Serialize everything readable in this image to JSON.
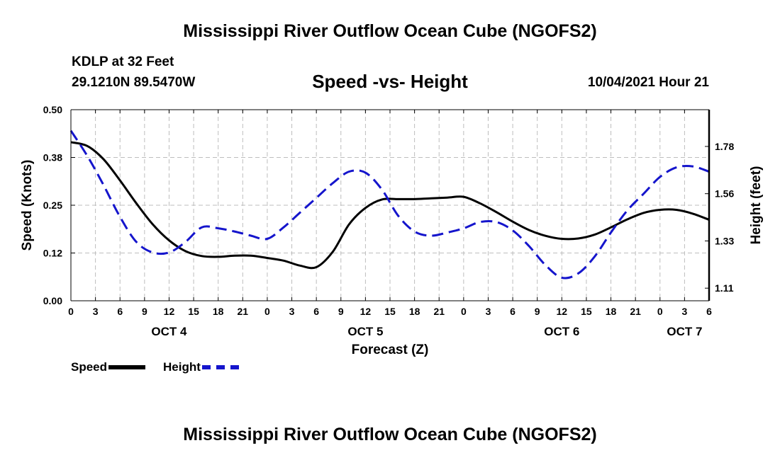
{
  "header": {
    "title": "Mississippi River Outflow Ocean Cube (NGOFS2)",
    "station": "KDLP at 32 Feet",
    "coords": "29.1210N  89.5470W",
    "subtitle": "Speed -vs- Height",
    "datetime": "10/04/2021 Hour 21"
  },
  "footer": {
    "title": "Mississippi River Outflow Ocean Cube (NGOFS2)"
  },
  "legend": {
    "speed_label": "Speed",
    "height_label": "Height"
  },
  "colors": {
    "speed": "#000000",
    "height": "#1515cc",
    "grid": "#bdbdbd"
  },
  "chart_data": {
    "type": "line",
    "xlabel": "Forecast (Z)",
    "ylabel_left": "Speed (Knots)",
    "ylabel_right": "Height (feet)",
    "xlim": [
      0,
      78
    ],
    "ylim_left": [
      0,
      0.5
    ],
    "ylim_right": [
      1.05,
      1.96
    ],
    "grid": true,
    "x_ticks": [
      0,
      3,
      6,
      9,
      12,
      15,
      18,
      21,
      24,
      27,
      30,
      33,
      36,
      39,
      42,
      45,
      48,
      51,
      54,
      57,
      60,
      63,
      66,
      69,
      72,
      75,
      78
    ],
    "x_tick_labels": [
      "0",
      "3",
      "6",
      "9",
      "12",
      "15",
      "18",
      "21",
      "0",
      "3",
      "6",
      "9",
      "12",
      "15",
      "18",
      "21",
      "0",
      "3",
      "6",
      "9",
      "12",
      "15",
      "18",
      "21",
      "0",
      "3",
      "6"
    ],
    "day_labels": [
      {
        "label": "OCT 4",
        "x": 12
      },
      {
        "label": "OCT 5",
        "x": 36
      },
      {
        "label": "OCT 6",
        "x": 60
      },
      {
        "label": "OCT 7",
        "x": 75
      }
    ],
    "y_left_ticks": [
      0,
      0.125,
      0.25,
      0.375,
      0.5
    ],
    "y_left_tick_labels": [
      "0.00",
      "0.12",
      "0.25",
      "0.38",
      "0.50"
    ],
    "y_right_ticks": [
      1.11,
      1.335,
      1.56,
      1.785
    ],
    "y_right_tick_labels": [
      "1.11",
      "1.33",
      "1.56",
      "1.78"
    ],
    "series": [
      {
        "name": "Speed",
        "axis": "left",
        "style": "solid",
        "x": [
          0,
          2,
          4,
          6,
          8,
          10,
          12,
          14,
          16,
          18,
          20,
          22,
          24,
          26,
          28,
          30,
          32,
          34,
          36,
          38,
          40,
          42,
          44,
          46,
          48,
          50,
          52,
          54,
          56,
          58,
          60,
          62,
          64,
          66,
          68,
          70,
          72,
          74,
          76,
          78
        ],
        "values": [
          0.415,
          0.405,
          0.37,
          0.315,
          0.255,
          0.2,
          0.158,
          0.13,
          0.117,
          0.115,
          0.118,
          0.118,
          0.112,
          0.105,
          0.092,
          0.088,
          0.128,
          0.2,
          0.243,
          0.265,
          0.266,
          0.266,
          0.268,
          0.27,
          0.272,
          0.255,
          0.232,
          0.207,
          0.185,
          0.17,
          0.162,
          0.163,
          0.173,
          0.192,
          0.213,
          0.23,
          0.238,
          0.238,
          0.228,
          0.212
        ]
      },
      {
        "name": "Height",
        "axis": "right",
        "style": "dashed",
        "x": [
          0,
          2,
          4,
          6,
          8,
          10,
          12,
          14,
          16,
          18,
          20,
          22,
          24,
          26,
          28,
          30,
          32,
          34,
          36,
          38,
          40,
          42,
          44,
          46,
          48,
          50,
          52,
          54,
          56,
          58,
          60,
          62,
          64,
          66,
          68,
          70,
          72,
          74,
          76,
          78
        ],
        "values": [
          1.86,
          1.74,
          1.6,
          1.45,
          1.33,
          1.28,
          1.28,
          1.33,
          1.4,
          1.395,
          1.38,
          1.36,
          1.345,
          1.4,
          1.47,
          1.54,
          1.61,
          1.665,
          1.66,
          1.58,
          1.455,
          1.38,
          1.36,
          1.375,
          1.395,
          1.425,
          1.425,
          1.385,
          1.31,
          1.22,
          1.16,
          1.18,
          1.26,
          1.375,
          1.48,
          1.56,
          1.64,
          1.685,
          1.69,
          1.665
        ]
      }
    ]
  }
}
